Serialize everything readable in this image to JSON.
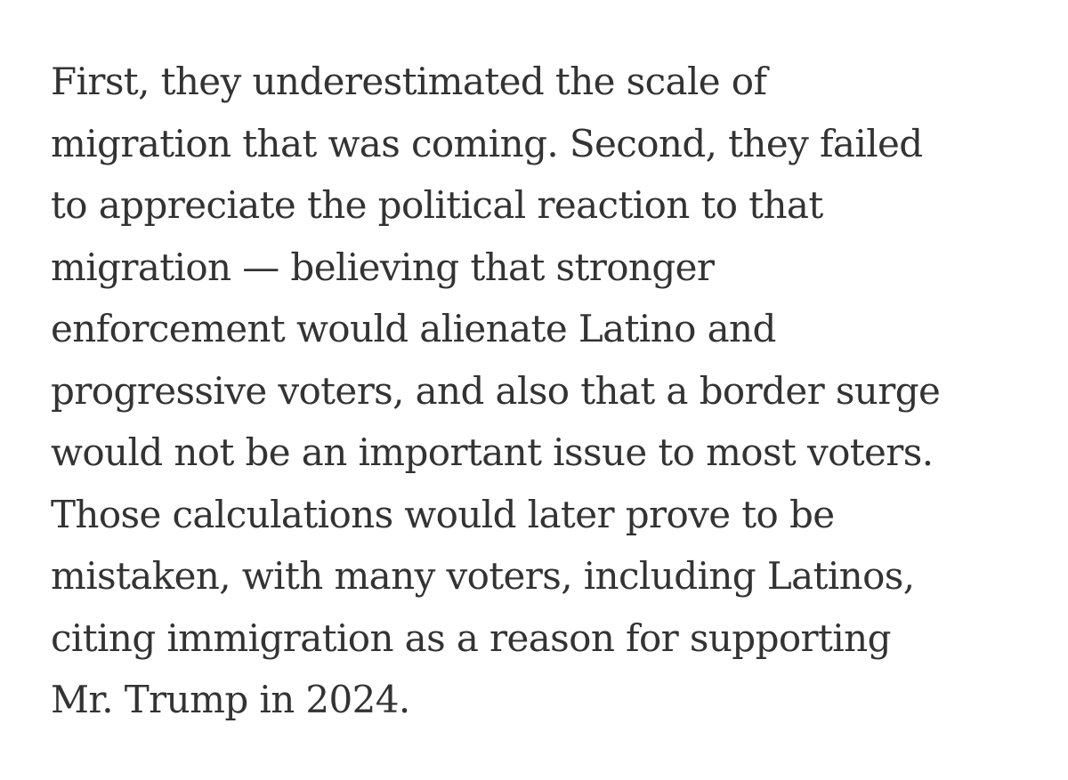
{
  "article": {
    "paragraph_lines": [
      "First, they underestimated the scale of",
      "migration that was coming. Second, they failed",
      "to appreciate the political reaction to that",
      "migration — believing that stronger",
      "enforcement would alienate Latino and",
      "progressive voters, and also that a border surge",
      "would not be an important issue to most voters.",
      "Those calculations would later prove to be",
      "mistaken, with many voters, including Latinos,",
      "citing immigration as a reason for supporting",
      "Mr. Trump in 2024."
    ]
  },
  "colors": {
    "text": "#333333",
    "background": "#ffffff"
  }
}
